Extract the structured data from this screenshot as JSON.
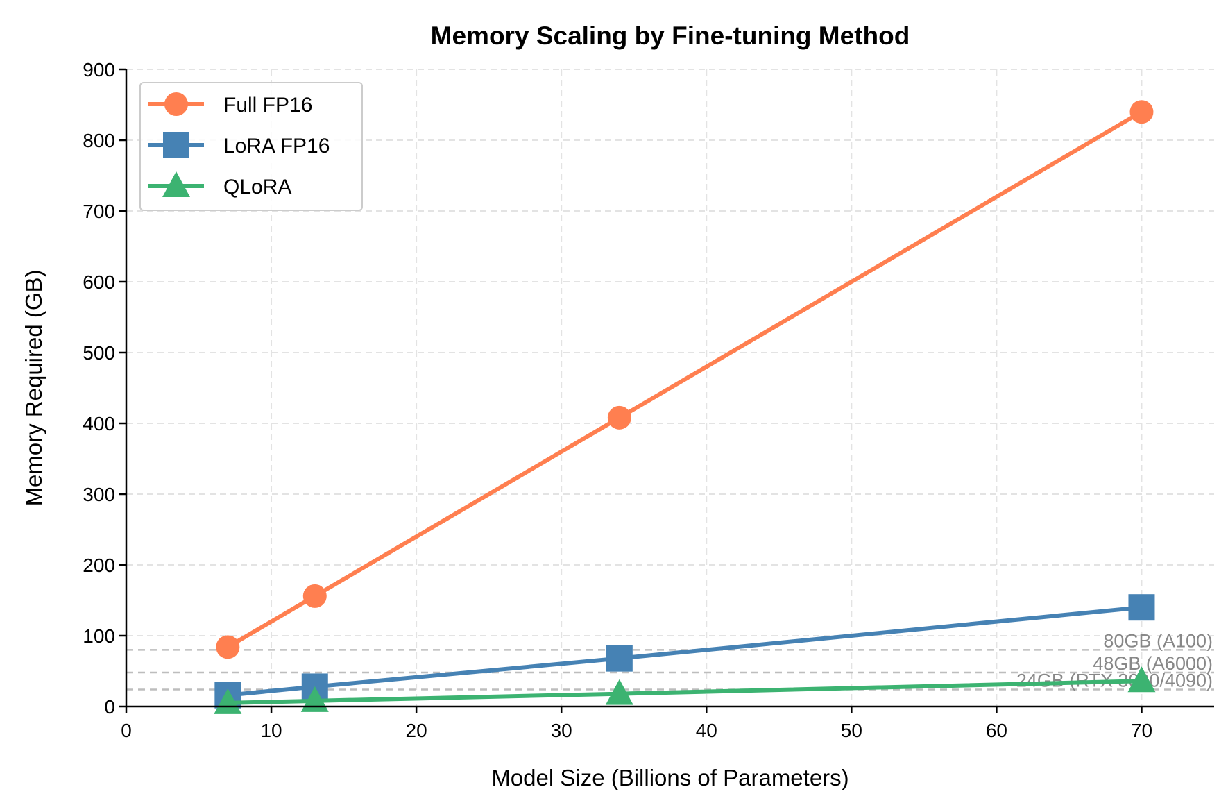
{
  "chart_data": {
    "type": "line",
    "title": "Memory Scaling by Fine-tuning Method",
    "xlabel": "Model Size (Billions of Parameters)",
    "ylabel": "Memory Required (GB)",
    "xlim": [
      0,
      75
    ],
    "ylim": [
      0,
      900
    ],
    "xticks": [
      0,
      10,
      20,
      30,
      40,
      50,
      60,
      70
    ],
    "yticks": [
      0,
      100,
      200,
      300,
      400,
      500,
      600,
      700,
      800,
      900
    ],
    "grid": true,
    "legend_position": "top-left",
    "x": [
      7,
      13,
      34,
      70
    ],
    "series": [
      {
        "name": "Full FP16",
        "values": [
          84,
          156,
          408,
          840
        ],
        "color": "#FF7F50",
        "marker": "circle"
      },
      {
        "name": "LoRA FP16",
        "values": [
          16,
          28,
          68,
          140
        ],
        "color": "#4682B4",
        "marker": "square"
      },
      {
        "name": "QLoRA",
        "values": [
          5,
          8,
          18,
          36
        ],
        "color": "#3CB371",
        "marker": "triangle"
      }
    ],
    "reference_lines": [
      {
        "value": 80,
        "label": "80GB (A100)"
      },
      {
        "value": 48,
        "label": "48GB (A6000)"
      },
      {
        "value": 24,
        "label": "24GB (RTX 3090/4090)"
      }
    ],
    "reference_color": "#999999"
  }
}
